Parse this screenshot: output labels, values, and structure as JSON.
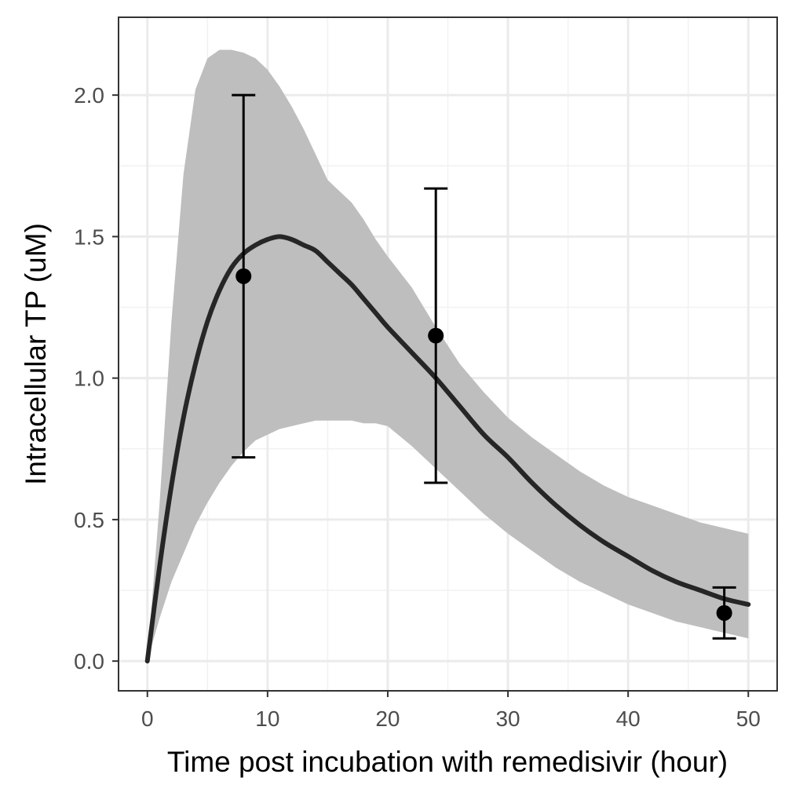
{
  "chart_data": {
    "type": "line",
    "xlabel": "Time post incubation with remedisivir (hour)",
    "ylabel": "Intracellular TP (uM)",
    "xlim": [
      -2.4,
      52.4
    ],
    "ylim": [
      -0.105,
      2.275
    ],
    "x_ticks": [
      0,
      10,
      20,
      30,
      40,
      50
    ],
    "x_tick_labels": [
      "0",
      "10",
      "20",
      "30",
      "40",
      "50"
    ],
    "y_ticks": [
      0.0,
      0.5,
      1.0,
      1.5,
      2.0
    ],
    "y_tick_labels": [
      "0.0",
      "0.5",
      "1.0",
      "1.5",
      "2.0"
    ],
    "grid": true,
    "legend": "none",
    "series": [
      {
        "kind": "fitted-curve",
        "x": [
          0,
          1,
          2,
          3,
          4,
          5,
          6,
          7,
          8,
          9,
          10,
          11,
          12,
          13,
          14,
          15,
          16,
          17,
          18,
          19,
          20,
          22,
          24,
          26,
          28,
          30,
          32,
          34,
          36,
          38,
          40,
          42,
          44,
          46,
          48,
          50
        ],
        "y": [
          0.0,
          0.33,
          0.62,
          0.86,
          1.05,
          1.2,
          1.31,
          1.39,
          1.44,
          1.47,
          1.49,
          1.5,
          1.49,
          1.47,
          1.45,
          1.41,
          1.37,
          1.33,
          1.28,
          1.23,
          1.18,
          1.09,
          1.0,
          0.9,
          0.8,
          0.72,
          0.63,
          0.55,
          0.48,
          0.42,
          0.37,
          0.32,
          0.28,
          0.25,
          0.22,
          0.2
        ],
        "color": "#262626"
      },
      {
        "kind": "confidence-band",
        "x": [
          0,
          1,
          2,
          3,
          4,
          5,
          6,
          7,
          8,
          9,
          10,
          11,
          12,
          13,
          14,
          15,
          16,
          17,
          18,
          19,
          20,
          22,
          24,
          26,
          28,
          30,
          32,
          34,
          36,
          38,
          40,
          42,
          44,
          46,
          48,
          50
        ],
        "lower": [
          0.0,
          0.15,
          0.28,
          0.38,
          0.48,
          0.56,
          0.63,
          0.69,
          0.74,
          0.78,
          0.8,
          0.82,
          0.83,
          0.84,
          0.85,
          0.85,
          0.85,
          0.85,
          0.84,
          0.84,
          0.83,
          0.76,
          0.68,
          0.6,
          0.52,
          0.45,
          0.39,
          0.33,
          0.28,
          0.24,
          0.2,
          0.17,
          0.14,
          0.12,
          0.1,
          0.08
        ],
        "upper": [
          0.0,
          0.55,
          1.2,
          1.72,
          2.02,
          2.13,
          2.16,
          2.16,
          2.15,
          2.13,
          2.09,
          2.03,
          1.96,
          1.88,
          1.79,
          1.7,
          1.66,
          1.62,
          1.56,
          1.49,
          1.43,
          1.32,
          1.18,
          1.05,
          0.95,
          0.86,
          0.79,
          0.73,
          0.67,
          0.62,
          0.58,
          0.55,
          0.52,
          0.49,
          0.47,
          0.45
        ],
        "color": "#bebebe"
      },
      {
        "kind": "observed-points",
        "x": [
          8,
          24,
          48
        ],
        "y": [
          1.36,
          1.15,
          0.17
        ],
        "error_low": [
          0.72,
          0.63,
          0.08
        ],
        "error_high": [
          2.0,
          1.67,
          0.26
        ],
        "color": "#000000"
      }
    ]
  }
}
